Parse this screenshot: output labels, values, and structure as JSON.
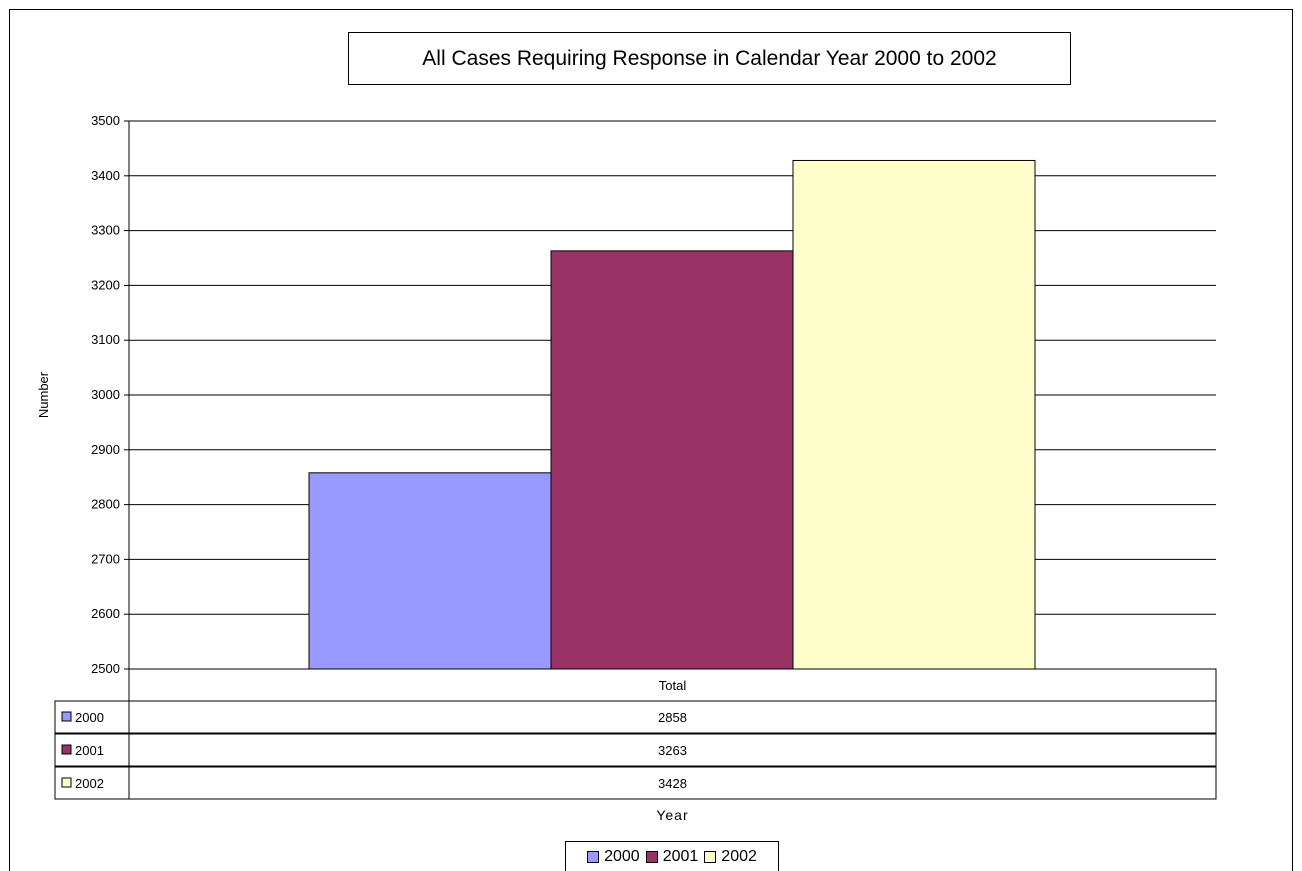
{
  "chart_data": {
    "type": "bar",
    "title": "All Cases Requiring Response in Calendar Year 2000 to 2002",
    "xlabel": "Year",
    "ylabel": "Number",
    "categories": [
      "Total"
    ],
    "ylim": [
      2500,
      3500
    ],
    "yticks": [
      2500,
      2600,
      2700,
      2800,
      2900,
      3000,
      3100,
      3200,
      3300,
      3400,
      3500
    ],
    "grid": true,
    "legend_position": "bottom",
    "series": [
      {
        "name": "2000",
        "values": [
          2858
        ],
        "color": "#9999FF"
      },
      {
        "name": "2001",
        "values": [
          3263
        ],
        "color": "#993366"
      },
      {
        "name": "2002",
        "values": [
          3428
        ],
        "color": "#FFFFCC"
      }
    ],
    "data_table": true
  }
}
